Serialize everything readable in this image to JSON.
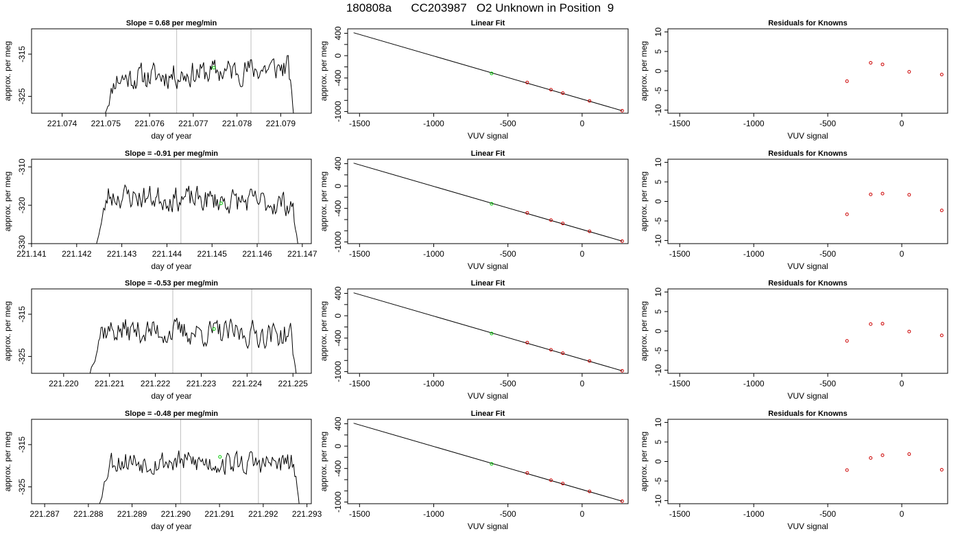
{
  "figure": {
    "title": "180808a      CC203987   O2 Unknown in Position  9"
  },
  "colors": {
    "trace": "#000000",
    "guide_lines": "#bebebe",
    "unknown_point": "#00c800",
    "known_points": "#cc0000"
  },
  "chart_data": [
    {
      "type": "line",
      "row": 0,
      "panel": "timeseries",
      "title": "Slope =  0.68  per meg/min",
      "xlabel": "day of year",
      "ylabel": "approx. per meg",
      "xlim": [
        221.0733,
        221.0797
      ],
      "ylim": [
        -329,
        -309
      ],
      "xticks": [
        "221.074",
        "221.075",
        "221.076",
        "221.077",
        "221.078",
        "221.079"
      ],
      "yticks": [
        "-315",
        "-325"
      ],
      "xtick_values": [
        221.074,
        221.075,
        221.076,
        221.077,
        221.078,
        221.079
      ],
      "ytick_values": [
        -315,
        -325
      ],
      "x_start": 221.07497,
      "x_end": 221.0793,
      "y_start": -329.5,
      "y_end": -330,
      "trace_mean": -319.5,
      "trace_amplitude": 3.0,
      "trace_trend": 1.5,
      "vlines": [
        221.07662,
        221.07832
      ],
      "unknown_point": [
        221.07747,
        -318.2
      ],
      "seed": 11
    },
    {
      "type": "scatter",
      "row": 0,
      "panel": "fit",
      "title": "Linear Fit",
      "xlabel": "VUV signal",
      "ylabel": "approx. per meg",
      "xlim": [
        -1580,
        310
      ],
      "ylim": [
        -1030,
        480
      ],
      "xticks": [
        "-1500",
        "-1000",
        "-500",
        "0"
      ],
      "xtick_values": [
        -1500,
        -1000,
        -500,
        0
      ],
      "yticks": [
        "400",
        "0",
        "-400",
        "-1000"
      ],
      "ytick_values": [
        400,
        0,
        -400,
        -1000
      ],
      "line": [
        [
          -1540,
          410
        ],
        [
          270,
          -985
        ]
      ],
      "known_x": [
        -370,
        -210,
        -130,
        50,
        270
      ],
      "known_y": [
        -480,
        -610,
        -670,
        -810,
        -985
      ],
      "unknown": [
        -610,
        -318
      ]
    },
    {
      "type": "scatter",
      "row": 0,
      "panel": "residuals",
      "title": "Residuals for Knowns",
      "xlabel": "VUV signal",
      "ylabel": "approx. per meg",
      "xlim": [
        -1580,
        310
      ],
      "ylim": [
        -10.8,
        10.8
      ],
      "xticks": [
        "-1500",
        "-1000",
        "-500",
        "0"
      ],
      "xtick_values": [
        -1500,
        -1000,
        -500,
        0
      ],
      "yticks": [
        "10",
        "5",
        "0",
        "-5",
        "-10"
      ],
      "ytick_values": [
        10,
        5,
        0,
        -5,
        -10
      ],
      "known_x": [
        -370,
        -210,
        -130,
        50,
        270
      ],
      "residuals": [
        -2.6,
        2.1,
        1.7,
        -0.2,
        -0.9
      ]
    },
    {
      "type": "line",
      "row": 1,
      "panel": "timeseries",
      "title": "Slope =  -0.91  per meg/min",
      "xlabel": "day of year",
      "ylabel": "approx. per meg",
      "xlim": [
        221.141,
        221.1472
      ],
      "ylim": [
        -330,
        -308
      ],
      "xticks": [
        "221.141",
        "221.142",
        "221.143",
        "221.144",
        "221.145",
        "221.146",
        "221.147"
      ],
      "yticks": [
        "-310",
        "-320",
        "-330"
      ],
      "xtick_values": [
        221.141,
        221.142,
        221.143,
        221.144,
        221.145,
        221.146,
        221.147
      ],
      "ytick_values": [
        -310,
        -320,
        -330
      ],
      "x_start": 221.14244,
      "x_end": 221.1469,
      "y_start": -330,
      "y_end": -330,
      "trace_mean": -318.5,
      "trace_amplitude": 3.2,
      "trace_trend": -1.2,
      "vlines": [
        221.14431,
        221.14603
      ],
      "unknown_point": [
        221.1452,
        -319.5
      ],
      "seed": 23
    },
    {
      "type": "scatter",
      "row": 1,
      "panel": "fit",
      "title": "Linear Fit",
      "xlabel": "VUV signal",
      "ylabel": "approx. per meg",
      "xlim": [
        -1580,
        310
      ],
      "ylim": [
        -1030,
        480
      ],
      "xticks": [
        "-1500",
        "-1000",
        "-500",
        "0"
      ],
      "xtick_values": [
        -1500,
        -1000,
        -500,
        0
      ],
      "yticks": [
        "400",
        "0",
        "-400",
        "-1000"
      ],
      "ytick_values": [
        400,
        0,
        -400,
        -1000
      ],
      "line": [
        [
          -1540,
          410
        ],
        [
          270,
          -985
        ]
      ],
      "known_x": [
        -370,
        -210,
        -130,
        50,
        270
      ],
      "known_y": [
        -480,
        -610,
        -670,
        -810,
        -985
      ],
      "unknown": [
        -610,
        -318
      ]
    },
    {
      "type": "scatter",
      "row": 1,
      "panel": "residuals",
      "title": "Residuals for Knowns",
      "xlabel": "VUV signal",
      "ylabel": "approx. per meg",
      "xlim": [
        -1580,
        310
      ],
      "ylim": [
        -10.8,
        10.8
      ],
      "xticks": [
        "-1500",
        "-1000",
        "-500",
        "0"
      ],
      "xtick_values": [
        -1500,
        -1000,
        -500,
        0
      ],
      "yticks": [
        "10",
        "5",
        "0",
        "-5",
        "-10"
      ],
      "ytick_values": [
        10,
        5,
        0,
        -5,
        -10
      ],
      "known_x": [
        -370,
        -210,
        -130,
        50,
        270
      ],
      "residuals": [
        -3.3,
        1.8,
        2.0,
        1.7,
        -2.3
      ]
    },
    {
      "type": "line",
      "row": 2,
      "panel": "timeseries",
      "title": "Slope =  -0.53  per meg/min",
      "xlabel": "day of year",
      "ylabel": "approx. per meg",
      "xlim": [
        221.2193,
        221.2254
      ],
      "ylim": [
        -329,
        -309
      ],
      "xticks": [
        "221.220",
        "221.221",
        "221.222",
        "221.223",
        "221.224",
        "221.225"
      ],
      "yticks": [
        "-315",
        "-325"
      ],
      "xtick_values": [
        221.22,
        221.221,
        221.222,
        221.223,
        221.224,
        221.225
      ],
      "ytick_values": [
        -315,
        -325
      ],
      "x_start": 221.22055,
      "x_end": 221.22508,
      "y_start": -330,
      "y_end": -330,
      "trace_mean": -319.3,
      "trace_amplitude": 3.0,
      "trace_trend": -0.6,
      "vlines": [
        221.22238,
        221.2241
      ],
      "unknown_point": [
        221.22328,
        -318.5
      ],
      "seed": 37
    },
    {
      "type": "scatter",
      "row": 2,
      "panel": "fit",
      "title": "Linear Fit",
      "xlabel": "VUV signal",
      "ylabel": "approx. per meg",
      "xlim": [
        -1580,
        310
      ],
      "ylim": [
        -1030,
        480
      ],
      "xticks": [
        "-1500",
        "-1000",
        "-500",
        "0"
      ],
      "xtick_values": [
        -1500,
        -1000,
        -500,
        0
      ],
      "yticks": [
        "400",
        "0",
        "-400",
        "-1000"
      ],
      "ytick_values": [
        400,
        0,
        -400,
        -1000
      ],
      "line": [
        [
          -1540,
          410
        ],
        [
          270,
          -985
        ]
      ],
      "known_x": [
        -370,
        -210,
        -130,
        50,
        270
      ],
      "known_y": [
        -480,
        -610,
        -670,
        -810,
        -985
      ],
      "unknown": [
        -610,
        -318
      ]
    },
    {
      "type": "scatter",
      "row": 2,
      "panel": "residuals",
      "title": "Residuals for Knowns",
      "xlabel": "VUV signal",
      "ylabel": "approx. per meg",
      "xlim": [
        -1580,
        310
      ],
      "ylim": [
        -10.8,
        10.8
      ],
      "xticks": [
        "-1500",
        "-1000",
        "-500",
        "0"
      ],
      "xtick_values": [
        -1500,
        -1000,
        -500,
        0
      ],
      "yticks": [
        "10",
        "5",
        "0",
        "-5",
        "-10"
      ],
      "ytick_values": [
        10,
        5,
        0,
        -5,
        -10
      ],
      "known_x": [
        -370,
        -210,
        -130,
        50,
        270
      ],
      "residuals": [
        -2.5,
        1.8,
        1.9,
        -0.1,
        -1.1
      ]
    },
    {
      "type": "line",
      "row": 3,
      "panel": "timeseries",
      "title": "Slope =  -0.48  per meg/min",
      "xlabel": "day of year",
      "ylabel": "approx. per meg",
      "xlim": [
        221.2867,
        221.2931
      ],
      "ylim": [
        -329,
        -309
      ],
      "xticks": [
        "221.287",
        "221.288",
        "221.289",
        "221.290",
        "221.291",
        "221.292",
        "221.293"
      ],
      "yticks": [
        "-315",
        "-325"
      ],
      "xtick_values": [
        221.287,
        221.288,
        221.289,
        221.29,
        221.291,
        221.292,
        221.293
      ],
      "ytick_values": [
        -315,
        -325
      ],
      "x_start": 221.28823,
      "x_end": 221.29283,
      "y_start": -330,
      "y_end": -330,
      "trace_mean": -319.2,
      "trace_amplitude": 2.8,
      "trace_trend": -0.5,
      "vlines": [
        221.29011,
        221.29189
      ],
      "unknown_point": [
        221.29101,
        -317.9
      ],
      "seed": 53
    },
    {
      "type": "scatter",
      "row": 3,
      "panel": "fit",
      "title": "Linear Fit",
      "xlabel": "VUV signal",
      "ylabel": "approx. per meg",
      "xlim": [
        -1580,
        310
      ],
      "ylim": [
        -1030,
        480
      ],
      "xticks": [
        "-1500",
        "-1000",
        "-500",
        "0"
      ],
      "xtick_values": [
        -1500,
        -1000,
        -500,
        0
      ],
      "yticks": [
        "400",
        "0",
        "-400",
        "-1000"
      ],
      "ytick_values": [
        400,
        0,
        -400,
        -1000
      ],
      "line": [
        [
          -1540,
          410
        ],
        [
          270,
          -985
        ]
      ],
      "known_x": [
        -370,
        -210,
        -130,
        50,
        270
      ],
      "known_y": [
        -480,
        -610,
        -670,
        -810,
        -985
      ],
      "unknown": [
        -610,
        -318
      ]
    },
    {
      "type": "scatter",
      "row": 3,
      "panel": "residuals",
      "title": "Residuals for Knowns",
      "xlabel": "VUV signal",
      "ylabel": "approx. per meg",
      "xlim": [
        -1580,
        310
      ],
      "ylim": [
        -10.8,
        10.8
      ],
      "xticks": [
        "-1500",
        "-1000",
        "-500",
        "0"
      ],
      "xtick_values": [
        -1500,
        -1000,
        -500,
        0
      ],
      "yticks": [
        "10",
        "5",
        "0",
        "-5",
        "-10"
      ],
      "ytick_values": [
        10,
        5,
        0,
        -5,
        -10
      ],
      "known_x": [
        -370,
        -210,
        -130,
        50,
        270
      ],
      "residuals": [
        -2.2,
        0.9,
        1.6,
        1.9,
        -2.1
      ]
    }
  ]
}
